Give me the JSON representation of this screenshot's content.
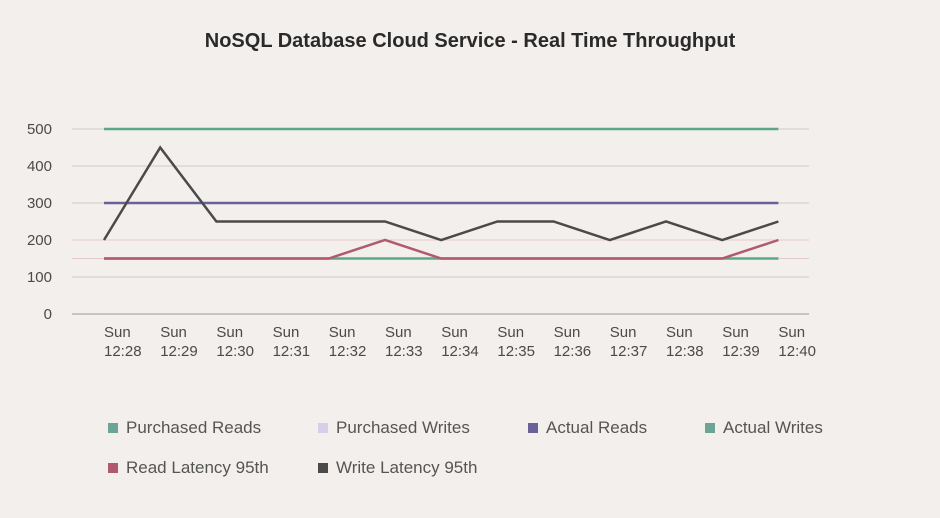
{
  "chart_data": {
    "type": "line",
    "title": "NoSQL Database Cloud Service - Real Time Throughput",
    "xlabel": "",
    "ylabel": "",
    "ylim": [
      0,
      500
    ],
    "yticks": [
      0,
      100,
      200,
      300,
      400,
      500
    ],
    "categories": [
      [
        "Sun",
        "12:28"
      ],
      [
        "Sun",
        "12:29"
      ],
      [
        "Sun",
        "12:30"
      ],
      [
        "Sun",
        "12:31"
      ],
      [
        "Sun",
        "12:32"
      ],
      [
        "Sun",
        "12:33"
      ],
      [
        "Sun",
        "12:34"
      ],
      [
        "Sun",
        "12:35"
      ],
      [
        "Sun",
        "12:36"
      ],
      [
        "Sun",
        "12:37"
      ],
      [
        "Sun",
        "12:38"
      ],
      [
        "Sun",
        "12:39"
      ],
      [
        "Sun",
        "12:40"
      ]
    ],
    "series": [
      {
        "name": "Purchased Reads",
        "color": "#5aa886",
        "dashed": false,
        "values": [
          500,
          500,
          500,
          500,
          500,
          500,
          500,
          500,
          500,
          500,
          500,
          500,
          500
        ]
      },
      {
        "name": "Purchased Writes",
        "color": "#c9c2e6",
        "dashed": true,
        "values": [
          300,
          300,
          300,
          300,
          300,
          300,
          300,
          300,
          300,
          300,
          300,
          300,
          300
        ]
      },
      {
        "name": "Actual Reads",
        "color": "#6b6199",
        "dashed": false,
        "values": [
          300,
          300,
          300,
          300,
          300,
          300,
          300,
          300,
          300,
          300,
          300,
          300,
          300
        ]
      },
      {
        "name": "Actual Writes",
        "color": "#5aa886",
        "dashed": false,
        "values": [
          150,
          150,
          150,
          150,
          150,
          150,
          150,
          150,
          150,
          150,
          150,
          150,
          150
        ]
      },
      {
        "name": "Read Latency 95th",
        "color": "#b05a6e",
        "dashed": false,
        "values": [
          150,
          150,
          150,
          150,
          150,
          200,
          150,
          150,
          150,
          150,
          150,
          150,
          200
        ]
      },
      {
        "name": "Write Latency 95th",
        "color": "#4a4a4a",
        "dashed": false,
        "values": [
          200,
          450,
          250,
          250,
          250,
          250,
          200,
          250,
          250,
          200,
          250,
          200,
          250
        ]
      }
    ],
    "legend": {
      "position": "bottom",
      "labels": [
        "Purchased Reads",
        "Purchased Writes",
        "Actual Reads",
        "Actual Writes",
        "Read Latency 95th",
        "Write Latency 95th"
      ],
      "colors": [
        "#6aa595",
        "#d5d0ea",
        "#6b6199",
        "#6aa595",
        "#b05a6e",
        "#4a4a4a"
      ]
    },
    "grid": true
  }
}
